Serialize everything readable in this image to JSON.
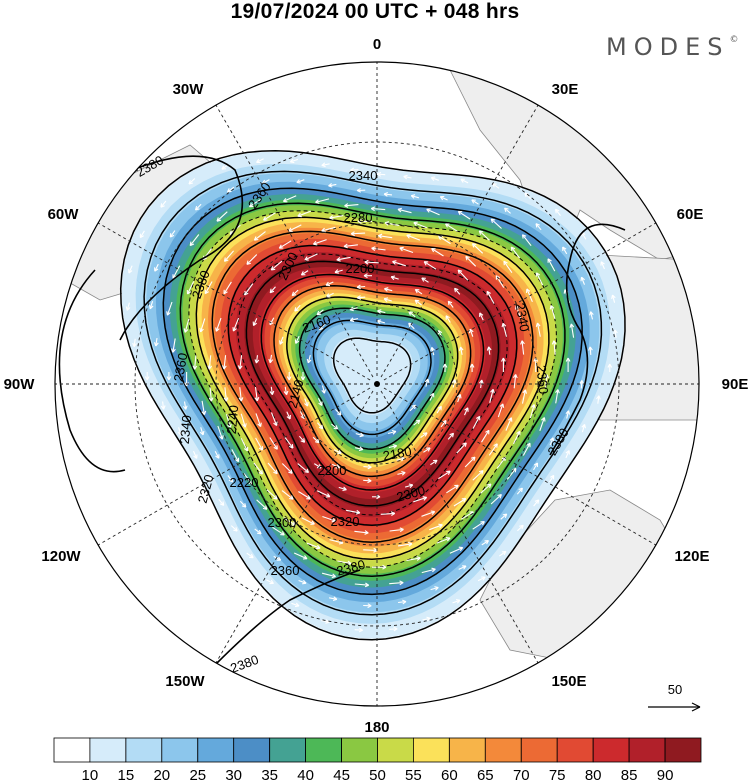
{
  "title": "19/07/2024  00 UTC  + 048 hrs",
  "logo": "MODES",
  "logo_mark": "©",
  "lon_labels": {
    "l0": "0",
    "l30e": "30E",
    "l60e": "60E",
    "l90e": "90E",
    "l120e": "120E",
    "l150e": "150E",
    "l180": "180",
    "l150w": "150W",
    "l120w": "120W",
    "l90w": "90W",
    "l60w": "60W",
    "l30w": "30W"
  },
  "contour_labels": [
    "2380",
    "2360",
    "2340",
    "2280",
    "2200",
    "2160",
    "2140",
    "2300",
    "2380",
    "2360",
    "2340",
    "2320",
    "2240",
    "2200",
    "2180",
    "2220",
    "2300",
    "2320",
    "2300",
    "2360",
    "2380",
    "2380",
    "2340",
    "2360",
    "2380",
    "2380"
  ],
  "reference_vector": "50",
  "colorbar": {
    "colors": [
      "#ffffff",
      "#d6ecfa",
      "#b3dcf5",
      "#8cc6ec",
      "#64a9dc",
      "#4c8ec6",
      "#44a293",
      "#4db857",
      "#8ac842",
      "#c9da48",
      "#fbe15a",
      "#f7b449",
      "#f3893a",
      "#ec6a34",
      "#e14a33",
      "#cc2a2d",
      "#b1202a",
      "#8f1a20"
    ],
    "ticks": [
      "10",
      "15",
      "20",
      "25",
      "30",
      "35",
      "40",
      "45",
      "50",
      "55",
      "60",
      "65",
      "70",
      "75",
      "80",
      "85",
      "90"
    ]
  }
}
